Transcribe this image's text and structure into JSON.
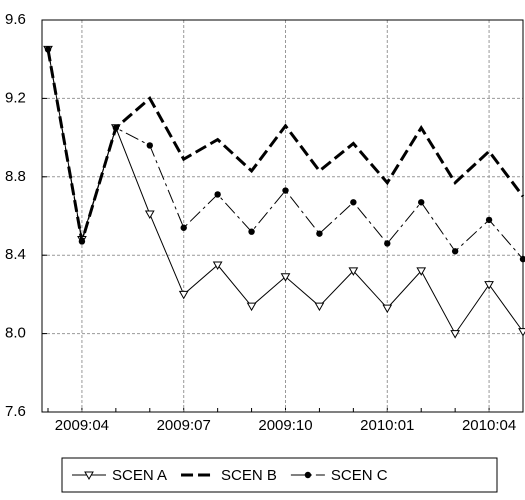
{
  "chart_data": {
    "type": "line",
    "categories": [
      null,
      "2009:04",
      null,
      null,
      "2009:07",
      null,
      null,
      "2009:10",
      null,
      null,
      "2010:01",
      null,
      null,
      "2010:04",
      null
    ],
    "series": [
      {
        "name": "SCEN A",
        "color": "#000000",
        "dash": "solid",
        "marker": "triangle-down",
        "line_width": 1,
        "values": [
          9.45,
          8.48,
          9.05,
          8.61,
          8.2,
          8.35,
          8.14,
          8.29,
          8.14,
          8.32,
          8.13,
          8.32,
          8.0,
          8.25,
          8.01
        ]
      },
      {
        "name": "SCEN B",
        "color": "#000000",
        "dash": "dashed",
        "marker": "none",
        "line_width": 3,
        "values": [
          9.45,
          8.47,
          9.05,
          9.2,
          8.89,
          8.99,
          8.83,
          9.06,
          8.83,
          8.97,
          8.77,
          9.05,
          8.77,
          8.93,
          8.7
        ]
      },
      {
        "name": "SCEN C",
        "color": "#000000",
        "dash": "dash-dot",
        "marker": "circle",
        "line_width": 1,
        "values": [
          9.45,
          8.47,
          9.05,
          8.96,
          8.54,
          8.71,
          8.52,
          8.73,
          8.51,
          8.67,
          8.46,
          8.67,
          8.42,
          8.58,
          8.38
        ]
      }
    ],
    "ylim": [
      7.6,
      9.6
    ],
    "yticks": [
      9.6,
      9.2,
      8.8,
      8.4,
      {
        "value": 8,
        "label": "8.0"
      },
      7.6
    ],
    "grid": true,
    "legend": "bottom"
  }
}
